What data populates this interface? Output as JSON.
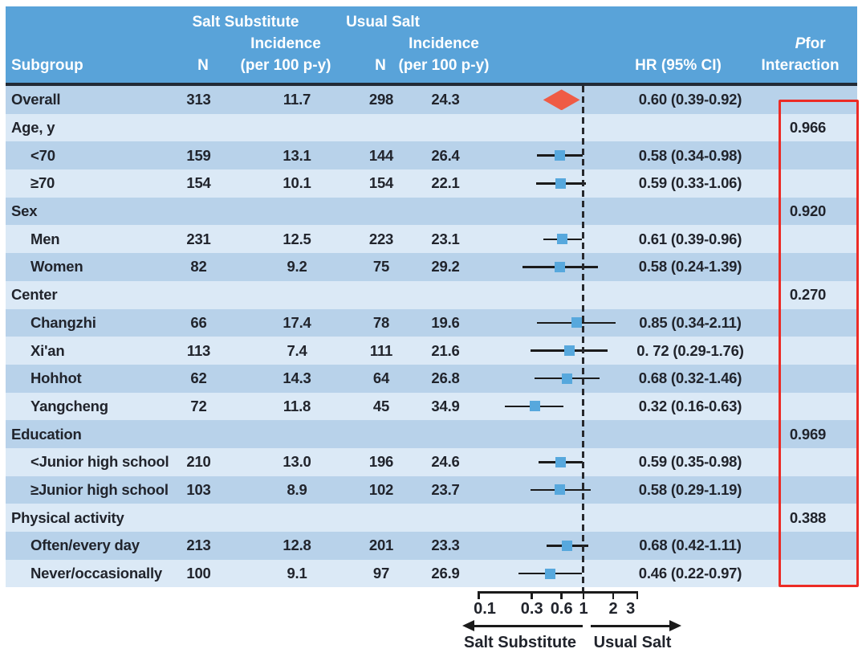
{
  "header": {
    "subgroup": "Subgroup",
    "group_salt_substitute": "Salt Substitute",
    "group_usual_salt": "Usual Salt",
    "incidence": "Incidence",
    "n": "N",
    "per_100": "(per 100 p-y)",
    "hr_ci": "HR (95% CI)",
    "p_italic": "P",
    "p_rest": "for",
    "p_line2": "Interaction"
  },
  "colors": {
    "header_blue": "#59A3D9",
    "row_dark": "#B8D2EA",
    "row_light": "#DBE9F6",
    "header_border_navy": "#222B36",
    "marker_square_blue": "#57A8DD",
    "overall_diamond_red": "#EF5B45",
    "highlight_box_red": "#EC2B25",
    "line_black": "#1b1b1b"
  },
  "chart_data": {
    "type": "forest",
    "x_scale": "log",
    "reference_line": 1,
    "axis": {
      "ticks": [
        0.1,
        0.3,
        0.6,
        1,
        2,
        3
      ],
      "range": [
        0.07,
        3.5
      ]
    },
    "arrow_left_label": "Salt Substitute",
    "arrow_right_label": "Usual Salt",
    "rows": [
      {
        "label": "Overall",
        "n_ss": "313",
        "inc_ss": "11.7",
        "n_us": "298",
        "inc_us": "24.3",
        "hr": 0.6,
        "ci": [
          0.39,
          0.92
        ],
        "hr_text": "0.60 (0.39-0.92)",
        "p_interaction": "",
        "marker": "diamond"
      },
      {
        "label": "Age, y",
        "n_ss": "",
        "inc_ss": "",
        "n_us": "",
        "inc_us": "",
        "hr_text": "",
        "p_interaction": "0.966"
      },
      {
        "label": "<70",
        "n_ss": "159",
        "inc_ss": "13.1",
        "n_us": "144",
        "inc_us": "26.4",
        "hr": 0.58,
        "ci": [
          0.34,
          0.98
        ],
        "hr_text": "0.58 (0.34-0.98)",
        "p_interaction": ""
      },
      {
        "label": "≥70",
        "n_ss": "154",
        "inc_ss": "10.1",
        "n_us": "154",
        "inc_us": "22.1",
        "hr": 0.59,
        "ci": [
          0.33,
          1.06
        ],
        "hr_text": "0.59 (0.33-1.06)",
        "p_interaction": ""
      },
      {
        "label": "Sex",
        "n_ss": "",
        "inc_ss": "",
        "n_us": "",
        "inc_us": "",
        "hr_text": "",
        "p_interaction": "0.920"
      },
      {
        "label": "Men",
        "n_ss": "231",
        "inc_ss": "12.5",
        "n_us": "223",
        "inc_us": "23.1",
        "hr": 0.61,
        "ci": [
          0.39,
          0.96
        ],
        "hr_text": "0.61 (0.39-0.96)",
        "p_interaction": ""
      },
      {
        "label": "Women",
        "n_ss": "82",
        "inc_ss": "9.2",
        "n_us": "75",
        "inc_us": "29.2",
        "hr": 0.58,
        "ci": [
          0.24,
          1.39
        ],
        "hr_text": "0.58 (0.24-1.39)",
        "p_interaction": ""
      },
      {
        "label": "Center",
        "n_ss": "",
        "inc_ss": "",
        "n_us": "",
        "inc_us": "",
        "hr_text": "",
        "p_interaction": "0.270"
      },
      {
        "label": "Changzhi",
        "n_ss": "66",
        "inc_ss": "17.4",
        "n_us": "78",
        "inc_us": "19.6",
        "hr": 0.85,
        "ci": [
          0.34,
          2.11
        ],
        "hr_text": "0.85 (0.34-2.11)",
        "p_interaction": ""
      },
      {
        "label": "Xi'an",
        "n_ss": "113",
        "inc_ss": "7.4",
        "n_us": "111",
        "inc_us": "21.6",
        "hr": 0.72,
        "ci": [
          0.29,
          1.76
        ],
        "hr_text": "0. 72 (0.29-1.76)",
        "p_interaction": ""
      },
      {
        "label": "Hohhot",
        "n_ss": "62",
        "inc_ss": "14.3",
        "n_us": "64",
        "inc_us": "26.8",
        "hr": 0.68,
        "ci": [
          0.32,
          1.46
        ],
        "hr_text": "0.68 (0.32-1.46)",
        "p_interaction": ""
      },
      {
        "label": "Yangcheng",
        "n_ss": "72",
        "inc_ss": "11.8",
        "n_us": "45",
        "inc_us": "34.9",
        "hr": 0.32,
        "ci": [
          0.16,
          0.63
        ],
        "hr_text": "0.32 (0.16-0.63)",
        "p_interaction": ""
      },
      {
        "label": "Education",
        "n_ss": "",
        "inc_ss": "",
        "n_us": "",
        "inc_us": "",
        "hr_text": "",
        "p_interaction": "0.969"
      },
      {
        "label": "<Junior high school",
        "n_ss": "210",
        "inc_ss": "13.0",
        "n_us": "196",
        "inc_us": "24.6",
        "hr": 0.59,
        "ci": [
          0.35,
          0.98
        ],
        "hr_text": "0.59 (0.35-0.98)",
        "p_interaction": ""
      },
      {
        "label": "≥Junior high school",
        "n_ss": "103",
        "inc_ss": "8.9",
        "n_us": "102",
        "inc_us": "23.7",
        "hr": 0.58,
        "ci": [
          0.29,
          1.19
        ],
        "hr_text": "0.58 (0.29-1.19)",
        "p_interaction": ""
      },
      {
        "label": "Physical activity",
        "n_ss": "",
        "inc_ss": "",
        "n_us": "",
        "inc_us": "",
        "hr_text": "",
        "p_interaction": "0.388"
      },
      {
        "label": "Often/every day",
        "n_ss": "213",
        "inc_ss": "12.8",
        "n_us": "201",
        "inc_us": "23.3",
        "hr": 0.68,
        "ci": [
          0.42,
          1.11
        ],
        "hr_text": "0.68 (0.42-1.11)",
        "p_interaction": ""
      },
      {
        "label": "Never/occasionally",
        "n_ss": "100",
        "inc_ss": "9.1",
        "n_us": "97",
        "inc_us": "26.9",
        "hr": 0.46,
        "ci": [
          0.22,
          0.97
        ],
        "hr_text": "0.46 (0.22-0.97)",
        "p_interaction": ""
      }
    ]
  }
}
